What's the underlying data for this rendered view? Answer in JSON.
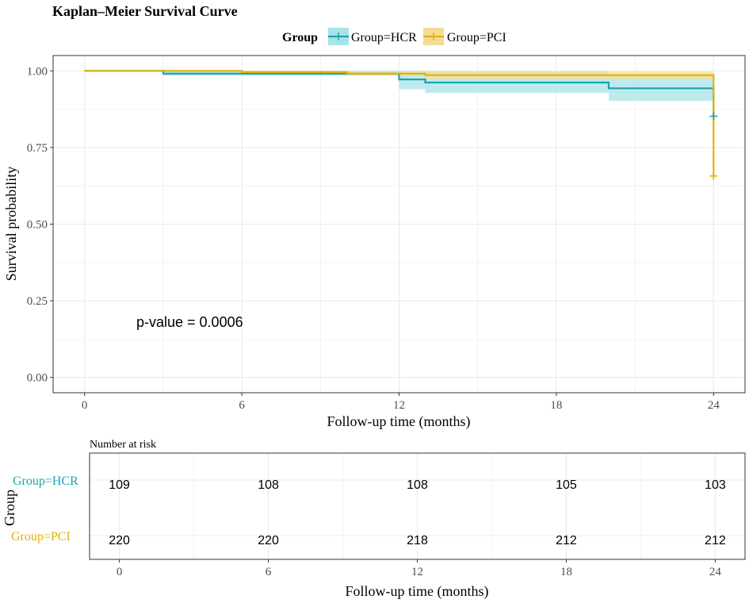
{
  "title": "Kaplan–Meier Survival Curve",
  "legend": {
    "title": "Group",
    "entries": [
      "Group=HCR",
      "Group=PCI"
    ]
  },
  "colors": {
    "HCR": "#1aa3b0",
    "PCI": "#e0b20a",
    "HCR_band": "#a8e3e8",
    "PCI_band": "#f3dc96",
    "grid": "#ebebeb",
    "axis_text": "#4d4d4d"
  },
  "annotation": "p-value = 0.0006",
  "chart_data": [
    {
      "type": "line",
      "subtype": "kaplan-meier-step",
      "title": "Kaplan–Meier Survival Curve",
      "xlabel": "Follow-up time (months)",
      "ylabel": "Survival probability",
      "xlim": [
        -1.2,
        25.2
      ],
      "ylim": [
        -0.05,
        1.05
      ],
      "x_ticks": [
        0,
        6,
        12,
        18,
        24
      ],
      "y_ticks": [
        0,
        0.25,
        0.5,
        0.75,
        1.0
      ],
      "y_tick_labels": [
        "0.00",
        "0.25",
        "0.50",
        "0.75",
        "1.00"
      ],
      "grid": true,
      "legend_position": "top",
      "series": [
        {
          "name": "Group=HCR",
          "color": "#1aa3b0",
          "steps": [
            [
              0,
              1.0
            ],
            [
              3,
              0.991
            ],
            [
              12,
              0.972
            ],
            [
              13,
              0.962
            ],
            [
              20,
              0.943
            ],
            [
              24,
              0.943
            ]
          ],
          "lower": [
            [
              0,
              1.0
            ],
            [
              3,
              0.984
            ],
            [
              12,
              0.94
            ],
            [
              13,
              0.928
            ],
            [
              20,
              0.902
            ],
            [
              24,
              0.902
            ]
          ],
          "upper": [
            [
              0,
              1.0
            ],
            [
              3,
              1.0
            ],
            [
              12,
              0.999
            ],
            [
              13,
              0.998
            ],
            [
              20,
              0.985
            ],
            [
              24,
              0.985
            ]
          ],
          "censor": [
            [
              24,
              0.852
            ]
          ],
          "final_drop": [
            24,
            0.852
          ]
        },
        {
          "name": "Group=PCI",
          "color": "#e0b20a",
          "steps": [
            [
              0,
              1.0
            ],
            [
              6,
              0.996
            ],
            [
              10,
              0.991
            ],
            [
              13,
              0.986
            ],
            [
              24,
              0.978
            ]
          ],
          "lower": [
            [
              0,
              1.0
            ],
            [
              6,
              0.991
            ],
            [
              10,
              0.985
            ],
            [
              13,
              0.972
            ],
            [
              24,
              0.958
            ]
          ],
          "upper": [
            [
              0,
              1.0
            ],
            [
              6,
              1.0
            ],
            [
              10,
              0.999
            ],
            [
              13,
              0.998
            ],
            [
              24,
              0.998
            ]
          ],
          "censor": [
            [
              24,
              0.657
            ]
          ],
          "final_drop": [
            24,
            0.657
          ]
        }
      ]
    },
    {
      "type": "table",
      "title": "Number at risk",
      "xlabel": "Follow-up time (months)",
      "ylabel": "Group",
      "x_ticks": [
        0,
        6,
        12,
        18,
        24
      ],
      "rows": [
        {
          "name": "Group=HCR",
          "color": "#1aa3b0",
          "values": [
            "109",
            "108",
            "108",
            "105",
            "103"
          ]
        },
        {
          "name": "Group=PCI",
          "color": "#e0b20a",
          "values": [
            "220",
            "220",
            "218",
            "212",
            "212"
          ]
        }
      ]
    }
  ]
}
